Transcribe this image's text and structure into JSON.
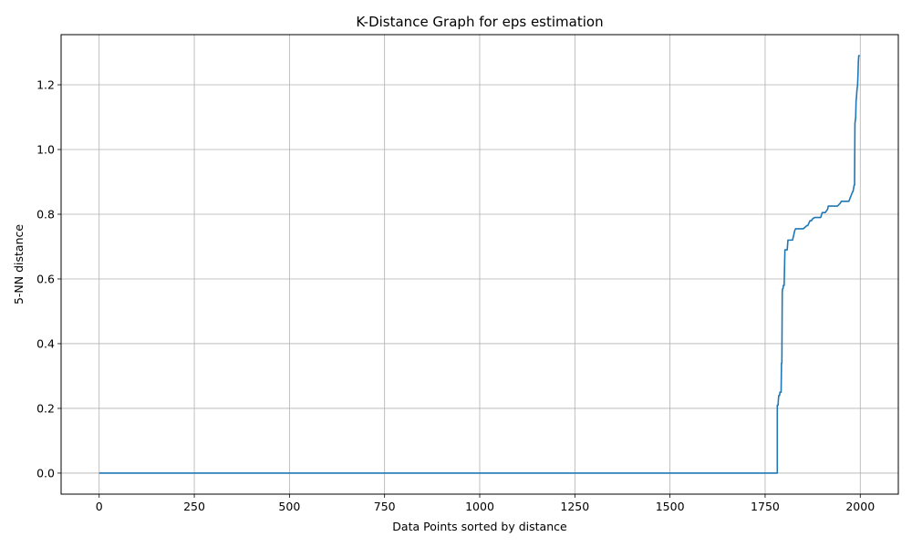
{
  "chart_data": {
    "type": "line",
    "title": "K-Distance Graph for eps estimation",
    "xlabel": "Data Points sorted by distance",
    "ylabel": "5-NN distance",
    "xlim": [
      -100,
      2100
    ],
    "ylim": [
      -0.065,
      1.355
    ],
    "x_ticks": [
      0,
      250,
      500,
      750,
      1000,
      1250,
      1500,
      1750,
      2000
    ],
    "y_ticks": [
      0.0,
      0.2,
      0.4,
      0.6,
      0.8,
      1.0,
      1.2
    ],
    "x_tick_labels": [
      "0",
      "250",
      "500",
      "750",
      "1000",
      "1250",
      "1500",
      "1750",
      "2000"
    ],
    "y_tick_labels": [
      "0.0",
      "0.2",
      "0.4",
      "0.6",
      "0.8",
      "1.0",
      "1.2"
    ],
    "grid": true,
    "series": [
      {
        "color": "#1f77b4",
        "x": [
          0,
          1780,
          1782,
          1782,
          1784,
          1785,
          1786,
          1788,
          1789,
          1790,
          1792,
          1793,
          1794,
          1795,
          1796,
          1797,
          1798,
          1800,
          1802,
          1803,
          1804,
          1806,
          1808,
          1810,
          1812,
          1814,
          1818,
          1822,
          1826,
          1828,
          1830,
          1834,
          1840,
          1850,
          1860,
          1862,
          1868,
          1872,
          1874,
          1880,
          1886,
          1896,
          1900,
          1908,
          1914,
          1916,
          1920,
          1940,
          1948,
          1950,
          1970,
          1980,
          1981,
          1984,
          1985,
          1986,
          1987,
          1988,
          1989,
          1990,
          1991,
          1992,
          1993,
          1994,
          1995,
          1996,
          1999
        ],
        "y": [
          0.0,
          0.0,
          0.0,
          0.21,
          0.21,
          0.23,
          0.24,
          0.24,
          0.25,
          0.25,
          0.25,
          0.34,
          0.34,
          0.56,
          0.57,
          0.57,
          0.58,
          0.58,
          0.69,
          0.69,
          0.69,
          0.69,
          0.69,
          0.72,
          0.72,
          0.72,
          0.72,
          0.72,
          0.74,
          0.75,
          0.755,
          0.755,
          0.755,
          0.755,
          0.765,
          0.765,
          0.78,
          0.78,
          0.785,
          0.79,
          0.79,
          0.79,
          0.805,
          0.805,
          0.815,
          0.825,
          0.825,
          0.825,
          0.835,
          0.84,
          0.84,
          0.87,
          0.87,
          0.89,
          0.89,
          1.08,
          1.09,
          1.1,
          1.15,
          1.16,
          1.18,
          1.19,
          1.2,
          1.23,
          1.27,
          1.29,
          1.29
        ]
      }
    ]
  }
}
